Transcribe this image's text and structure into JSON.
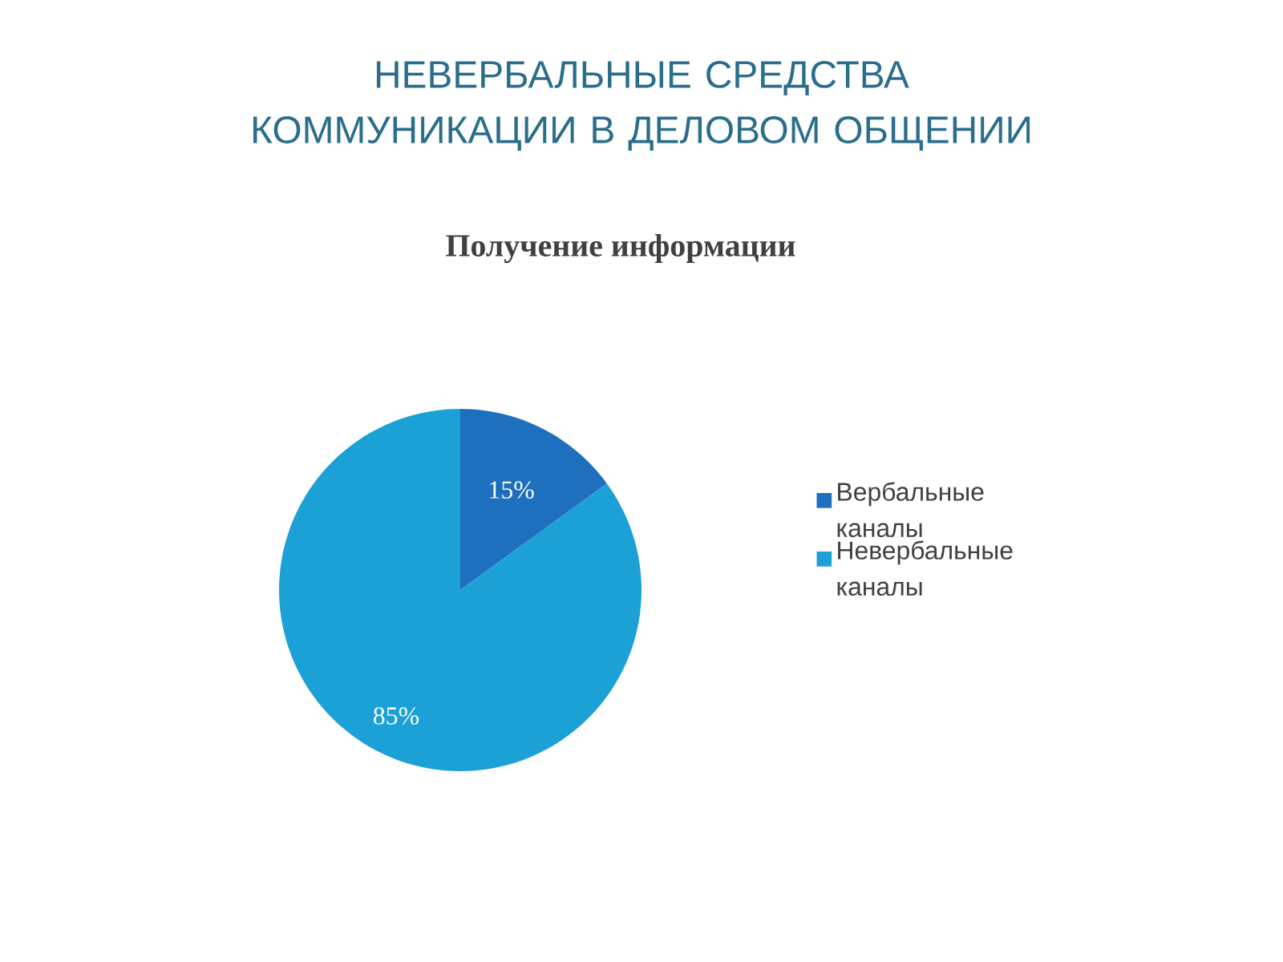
{
  "chart_data": {
    "type": "pie",
    "title": "НЕВЕРБАЛЬНЫЕ СРЕДСТВА КОММУНИКАЦИИ В ДЕЛОВОМ ОБЩЕНИИ",
    "subtitle": "Получение информации",
    "categories": [
      "Вербальные каналы",
      "Невербальные каналы"
    ],
    "values": [
      15,
      85
    ],
    "colors": [
      "#1f6fbf",
      "#1ba1d6"
    ],
    "value_labels": [
      "15%",
      "85%"
    ],
    "legend": "right"
  }
}
